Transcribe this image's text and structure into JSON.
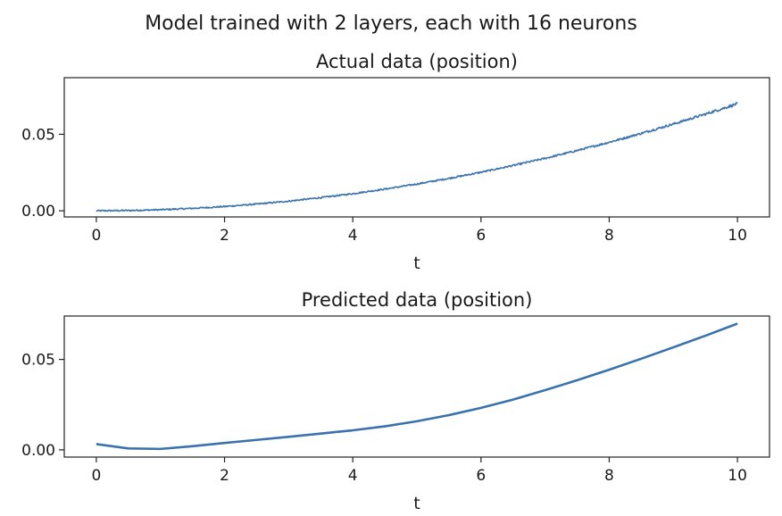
{
  "figure": {
    "suptitle": "Model trained with 2 layers, each with 16 neurons"
  },
  "chart_data": [
    {
      "type": "line",
      "title": "Actual data (position)",
      "xlabel": "t",
      "ylabel": "",
      "xlim": [
        -0.5,
        10.5
      ],
      "ylim": [
        -0.004,
        0.087
      ],
      "x_ticks": [
        0,
        2,
        4,
        6,
        8,
        10
      ],
      "x_tick_labels": [
        "0",
        "2",
        "4",
        "6",
        "8",
        "10"
      ],
      "y_ticks": [
        0.0,
        0.05
      ],
      "y_tick_labels": [
        "0.00",
        "0.05"
      ],
      "grid": false,
      "color": "#3a72ad",
      "noisy": true,
      "series": [
        {
          "x": [
            0,
            0.5,
            1,
            1.5,
            2,
            2.5,
            3,
            3.5,
            4,
            4.5,
            5,
            5.5,
            6,
            6.5,
            7,
            7.5,
            8,
            8.5,
            9,
            9.5,
            10
          ],
          "values": [
            0.0,
            0.0002,
            0.0007,
            0.0016,
            0.0028,
            0.0044,
            0.0063,
            0.0086,
            0.0112,
            0.0142,
            0.0175,
            0.0212,
            0.0252,
            0.0296,
            0.0343,
            0.0394,
            0.0448,
            0.0506,
            0.0567,
            0.0632,
            0.07
          ]
        }
      ]
    },
    {
      "type": "line",
      "title": "Predicted data (position)",
      "xlabel": "t",
      "ylabel": "",
      "xlim": [
        -0.5,
        10.5
      ],
      "ylim": [
        -0.004,
        0.074
      ],
      "x_ticks": [
        0,
        2,
        4,
        6,
        8,
        10
      ],
      "x_tick_labels": [
        "0",
        "2",
        "4",
        "6",
        "8",
        "10"
      ],
      "y_ticks": [
        0.0,
        0.05
      ],
      "y_tick_labels": [
        "0.00",
        "0.05"
      ],
      "grid": false,
      "color": "#3a72ad",
      "noisy": false,
      "series": [
        {
          "x": [
            0,
            0.5,
            1,
            1.5,
            2,
            2.5,
            3,
            3.5,
            4,
            4.5,
            5,
            5.5,
            6,
            6.5,
            7,
            7.5,
            8,
            8.5,
            9,
            9.5,
            10
          ],
          "values": [
            0.0032,
            0.0008,
            0.0005,
            0.002,
            0.0038,
            0.0055,
            0.0072,
            0.009,
            0.0108,
            0.013,
            0.0158,
            0.0192,
            0.0232,
            0.0278,
            0.033,
            0.0385,
            0.0443,
            0.0504,
            0.0567,
            0.0631,
            0.0698
          ]
        }
      ]
    }
  ]
}
